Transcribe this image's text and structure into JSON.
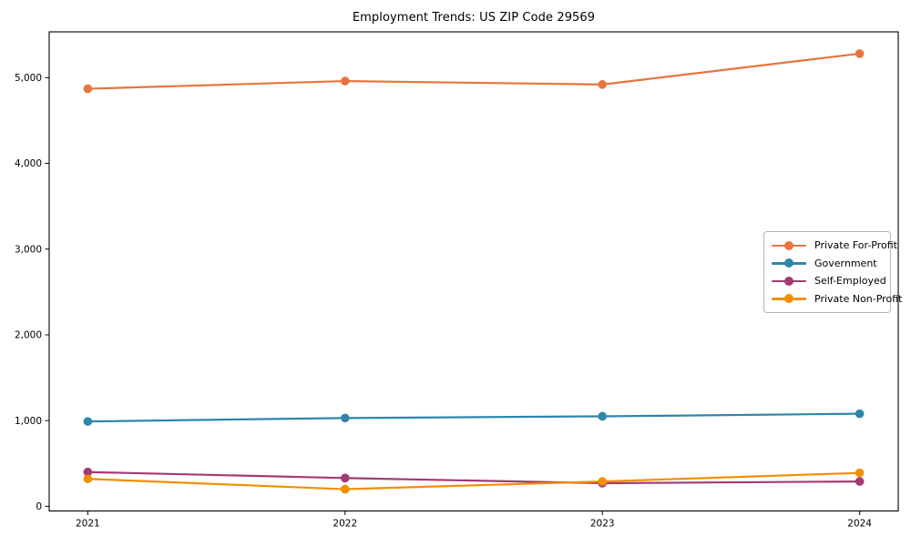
{
  "window": {
    "background": "#ffffff"
  },
  "chart_data": {
    "type": "line",
    "title": "Employment Trends: US ZIP Code 29569",
    "xlabel": "",
    "ylabel": "",
    "x": [
      2021,
      2022,
      2023,
      2024
    ],
    "x_tick_labels": [
      "2021",
      "2022",
      "2023",
      "2024"
    ],
    "y_ticks": [
      0,
      1000,
      2000,
      3000,
      4000,
      5000
    ],
    "y_tick_labels": [
      "0",
      "1,000",
      "2,000",
      "3,000",
      "4,000",
      "5,000"
    ],
    "xlim": [
      2020.85,
      2024.15
    ],
    "ylim": [
      -54,
      5534
    ],
    "grid": false,
    "legend_position": "center-right",
    "frame_color": "#000000",
    "series": [
      {
        "name": "Private For-Profit",
        "color": "#E8743E",
        "marker": "circle",
        "values": [
          4870,
          4960,
          4920,
          5280
        ]
      },
      {
        "name": "Government",
        "color": "#2E86AB",
        "marker": "circle",
        "values": [
          990,
          1030,
          1050,
          1080
        ]
      },
      {
        "name": "Self-Employed",
        "color": "#A23B72",
        "marker": "circle",
        "values": [
          400,
          330,
          270,
          290
        ]
      },
      {
        "name": "Private Non-Profit",
        "color": "#F18F01",
        "marker": "circle",
        "values": [
          320,
          200,
          290,
          390
        ]
      }
    ]
  }
}
